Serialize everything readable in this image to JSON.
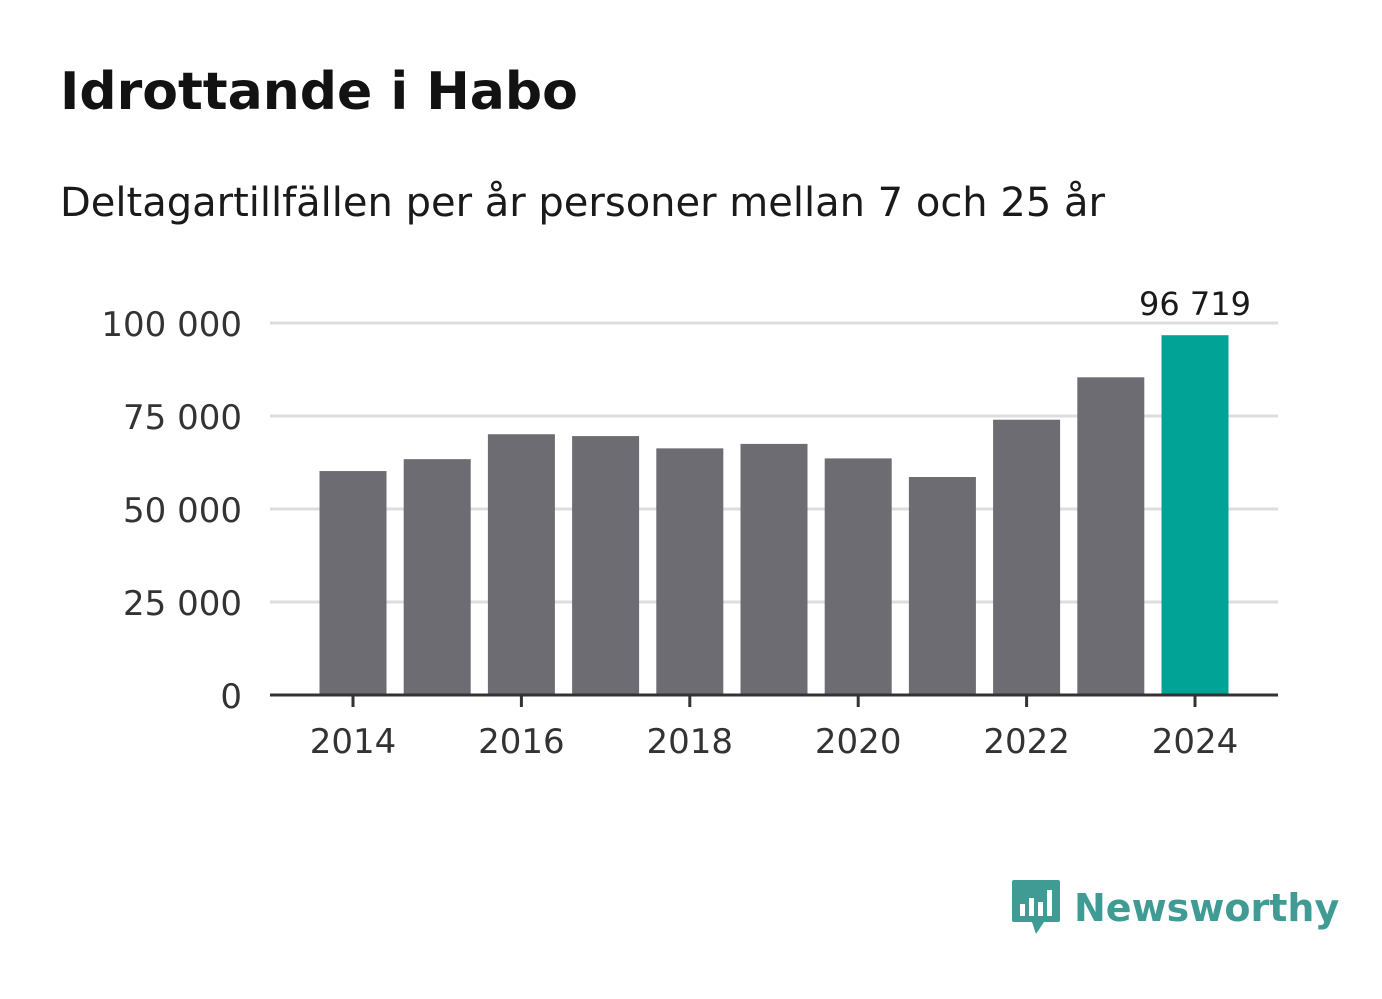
{
  "header": {
    "title": "Idrottande i Habo",
    "subtitle": "Deltagartillfällen per år personer mellan 7 och 25 år"
  },
  "brand": {
    "name": "Newsworthy",
    "color": "#3f9b93"
  },
  "colors": {
    "bar": "#6d6c73",
    "highlight": "#00a396",
    "grid": "#dddddd",
    "axis": "#333333"
  },
  "chart_data": {
    "type": "bar",
    "categories": [
      "2014",
      "2015",
      "2016",
      "2017",
      "2018",
      "2019",
      "2020",
      "2021",
      "2022",
      "2023",
      "2024"
    ],
    "values": [
      60200,
      63400,
      70100,
      69600,
      66300,
      67500,
      63600,
      58600,
      74000,
      85400,
      96719
    ],
    "highlight_index": 10,
    "data_label": "96 719",
    "title": "Idrottande i Habo",
    "xlabel": "",
    "ylabel": "",
    "ylim": [
      0,
      100000
    ],
    "yticks": [
      0,
      25000,
      50000,
      75000,
      100000
    ],
    "ytick_labels": [
      "0",
      "25 000",
      "50 000",
      "75 000",
      "100 000"
    ],
    "xtick_labels": [
      "2014",
      "2016",
      "2018",
      "2020",
      "2022",
      "2024"
    ],
    "grid": true
  }
}
